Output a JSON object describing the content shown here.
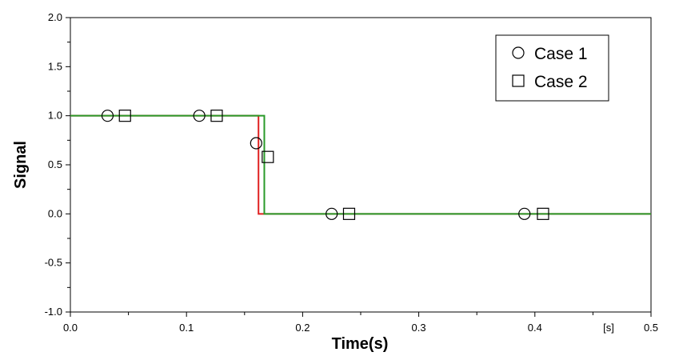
{
  "chart_data": {
    "type": "line",
    "xlabel": "Time(s)",
    "ylabel": "Signal",
    "x_unit_label": "[s]",
    "xlim": [
      0.0,
      0.5
    ],
    "ylim": [
      -1.0,
      2.0
    ],
    "x_ticks": [
      "0.0",
      "0.1",
      "0.2",
      "0.3",
      "0.4",
      "0.5"
    ],
    "y_ticks": [
      "2.0",
      "1.5",
      "1.0",
      "0.5",
      "0.0",
      "-0.5",
      "-1.0"
    ],
    "grid": false,
    "legend_position": "top-right",
    "series": [
      {
        "name": "Case 1",
        "marker": "circle",
        "color": "#e02020",
        "line": [
          [
            0.0,
            1.0
          ],
          [
            0.162,
            1.0
          ],
          [
            0.162,
            0.0
          ],
          [
            0.5,
            0.0
          ]
        ],
        "points": [
          [
            0.032,
            1.0
          ],
          [
            0.111,
            1.0
          ],
          [
            0.16,
            0.72
          ],
          [
            0.225,
            0.0
          ],
          [
            0.391,
            0.0
          ]
        ]
      },
      {
        "name": "Case 2",
        "marker": "square",
        "color": "#2a9a2a",
        "line": [
          [
            0.0,
            1.0
          ],
          [
            0.167,
            1.0
          ],
          [
            0.167,
            0.0
          ],
          [
            0.5,
            0.0
          ]
        ],
        "points": [
          [
            0.047,
            1.0
          ],
          [
            0.126,
            1.0
          ],
          [
            0.17,
            0.58
          ],
          [
            0.24,
            0.0
          ],
          [
            0.407,
            0.0
          ]
        ]
      }
    ]
  }
}
